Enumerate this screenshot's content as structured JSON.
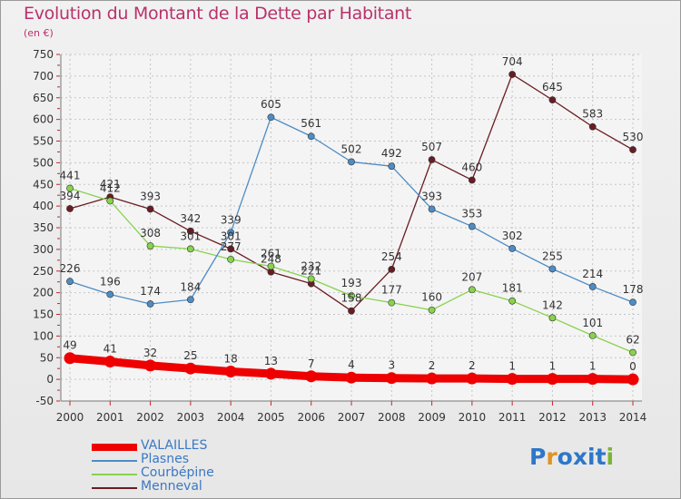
{
  "chart_data": {
    "type": "line",
    "title": "Evolution du Montant de la Dette par Habitant",
    "subtitle": "(en €)",
    "x": [
      "2000",
      "2001",
      "2002",
      "2003",
      "2004",
      "2005",
      "2006",
      "2007",
      "2008",
      "2009",
      "2010",
      "2011",
      "2012",
      "2013",
      "2014"
    ],
    "ylim": [
      -50,
      750
    ],
    "yticks": [
      -50,
      0,
      50,
      100,
      150,
      200,
      250,
      300,
      350,
      400,
      450,
      500,
      550,
      600,
      650,
      700,
      750
    ],
    "grid": true,
    "legend_position": "bottom-left",
    "series": [
      {
        "name": "VALAILLES",
        "color": "#ee0000",
        "values": [
          49,
          41,
          32,
          25,
          18,
          13,
          7,
          4,
          3,
          2,
          2,
          1,
          1,
          1,
          0
        ]
      },
      {
        "name": "Plasnes",
        "color": "#4f8cc4",
        "values": [
          226,
          196,
          174,
          184,
          339,
          605,
          561,
          502,
          492,
          393,
          353,
          302,
          255,
          214,
          178
        ]
      },
      {
        "name": "Courbépine",
        "color": "#88d24e",
        "values": [
          441,
          412,
          308,
          301,
          277,
          261,
          232,
          193,
          177,
          160,
          207,
          181,
          142,
          101,
          62
        ]
      },
      {
        "name": "Menneval",
        "color": "#6a1c22",
        "values": [
          394,
          421,
          393,
          342,
          301,
          248,
          221,
          158,
          254,
          507,
          460,
          704,
          645,
          583,
          530
        ]
      }
    ]
  },
  "logo": {
    "letters": [
      "P",
      "r",
      "o",
      "x",
      "i",
      "t",
      "i"
    ],
    "colors": [
      "#2d77c9",
      "#e3911f",
      "#2d77c9",
      "#2d77c9",
      "#2d77c9",
      "#2d77c9",
      "#7ab52f"
    ]
  }
}
